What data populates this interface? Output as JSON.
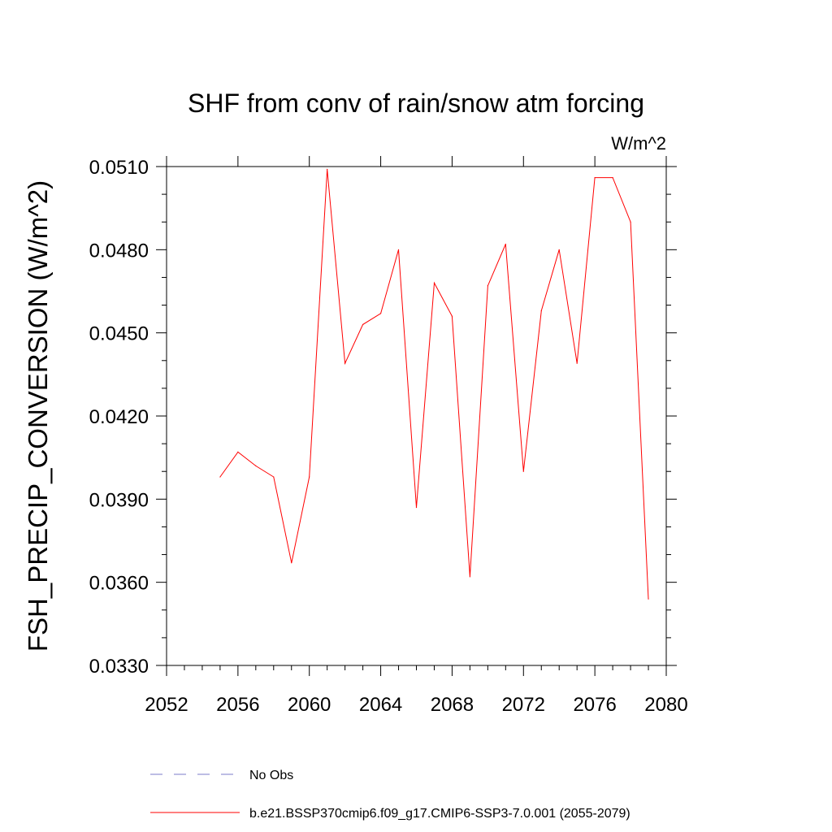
{
  "chart_data": {
    "type": "line",
    "title": "SHF from conv of rain/snow atm forcing",
    "units_label": "W/m^2",
    "ylabel": "FSH_PRECIP_CONVERSION  (W/m^2)",
    "xlabel": "",
    "xlim": [
      2052,
      2080
    ],
    "ylim": [
      0.033,
      0.051
    ],
    "x_ticks": [
      2052,
      2056,
      2060,
      2064,
      2068,
      2072,
      2076,
      2080
    ],
    "x_tick_labels": [
      "2052",
      "2056",
      "2060",
      "2064",
      "2068",
      "2072",
      "2076",
      "2080"
    ],
    "y_ticks": [
      0.033,
      0.036,
      0.039,
      0.042,
      0.045,
      0.048,
      0.051
    ],
    "y_tick_labels": [
      "0.0330",
      "0.0360",
      "0.0390",
      "0.0420",
      "0.0450",
      "0.0480",
      "0.0510"
    ],
    "grid": false,
    "legend_placement": "bottom",
    "series": [
      {
        "name": "b.e21.BSSP370cmip6.f09_g17.CMIP6-SSP3-7.0.001 (2055-2079)",
        "color": "#ff0000",
        "dash": "solid",
        "x": [
          2055,
          2056,
          2057,
          2058,
          2059,
          2060,
          2061,
          2062,
          2063,
          2064,
          2065,
          2066,
          2067,
          2068,
          2069,
          2070,
          2071,
          2072,
          2073,
          2074,
          2075,
          2076,
          2077,
          2078,
          2079
        ],
        "values": [
          0.0398,
          0.0407,
          0.0402,
          0.0398,
          0.0367,
          0.0398,
          0.0509,
          0.0439,
          0.0453,
          0.0457,
          0.048,
          0.0387,
          0.0468,
          0.0456,
          0.0362,
          0.0467,
          0.0482,
          0.04,
          0.0458,
          0.048,
          0.0439,
          0.0506,
          0.0506,
          0.049,
          0.0354
        ]
      }
    ],
    "legend_entries": [
      {
        "label": "No Obs",
        "color": "#7b7bc8",
        "dash": "dashed"
      },
      {
        "label": "b.e21.BSSP370cmip6.f09_g17.CMIP6-SSP3-7.0.001 (2055-2079)",
        "color": "#ff0000",
        "dash": "solid"
      }
    ]
  }
}
